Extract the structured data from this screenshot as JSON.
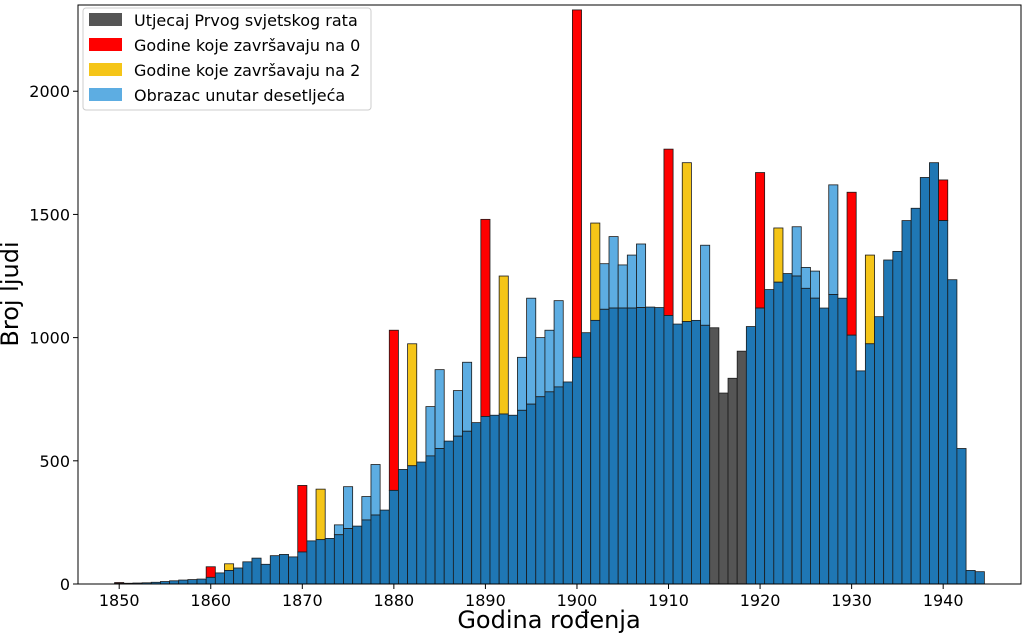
{
  "chart_data": {
    "type": "bar",
    "xlabel": "Godina rođenja",
    "ylabel": "Broj ljudi",
    "xlim": [
      1845.5,
      1948.5
    ],
    "ylim": [
      0,
      2350
    ],
    "x_ticks": [
      1850,
      1860,
      1870,
      1880,
      1890,
      1900,
      1910,
      1920,
      1930,
      1940
    ],
    "y_ticks": [
      0,
      500,
      1000,
      1500,
      2000
    ],
    "legend_position": "top-left",
    "colors": {
      "base": "#1f77b4",
      "ww1": "#555555",
      "zero": "#ff0000",
      "two": "#f5c518",
      "pattern": "#5dade2"
    },
    "legend": [
      {
        "label": "Utjecaj Prvog svjetskog rata",
        "color_key": "ww1"
      },
      {
        "label": "Godine koje završavaju na 0",
        "color_key": "zero"
      },
      {
        "label": "Godine koje završavaju na 2",
        "color_key": "two"
      },
      {
        "label": "Obrazac unutar desetljeća",
        "color_key": "pattern"
      }
    ],
    "years": [
      1850,
      1851,
      1852,
      1853,
      1854,
      1855,
      1856,
      1857,
      1858,
      1859,
      1860,
      1861,
      1862,
      1863,
      1864,
      1865,
      1866,
      1867,
      1868,
      1869,
      1870,
      1871,
      1872,
      1873,
      1874,
      1875,
      1876,
      1877,
      1878,
      1879,
      1880,
      1881,
      1882,
      1883,
      1884,
      1885,
      1886,
      1887,
      1888,
      1889,
      1890,
      1891,
      1892,
      1893,
      1894,
      1895,
      1896,
      1897,
      1898,
      1899,
      1900,
      1901,
      1902,
      1903,
      1904,
      1905,
      1906,
      1907,
      1908,
      1909,
      1910,
      1911,
      1912,
      1913,
      1914,
      1915,
      1916,
      1917,
      1918,
      1919,
      1920,
      1921,
      1922,
      1923,
      1924,
      1925,
      1926,
      1927,
      1928,
      1929,
      1930,
      1931,
      1932,
      1933,
      1934,
      1935,
      1936,
      1937,
      1938,
      1939,
      1940,
      1941,
      1942,
      1943,
      1944
    ],
    "base_values": [
      2,
      3,
      4,
      5,
      7,
      10,
      13,
      16,
      18,
      20,
      27,
      45,
      55,
      65,
      90,
      105,
      80,
      115,
      120,
      110,
      130,
      175,
      180,
      185,
      200,
      225,
      235,
      260,
      280,
      300,
      380,
      465,
      480,
      495,
      520,
      550,
      580,
      600,
      620,
      655,
      680,
      685,
      690,
      685,
      705,
      730,
      760,
      780,
      800,
      820,
      920,
      1020,
      1070,
      1115,
      1120,
      1120,
      1120,
      1122,
      1124,
      1122,
      1090,
      1055,
      1065,
      1070,
      1050,
      1040,
      775,
      835,
      945,
      1045,
      1120,
      1195,
      1225,
      1260,
      1250,
      1200,
      1160,
      1120,
      1175,
      1160,
      1010,
      865,
      975,
      1085,
      1315,
      1350,
      1475,
      1525,
      1650,
      1710,
      1475,
      1235,
      550,
      55,
      50
    ],
    "highlight_values": [
      6,
      0,
      0,
      0,
      0,
      0,
      0,
      0,
      0,
      0,
      70,
      0,
      82,
      0,
      0,
      0,
      0,
      0,
      0,
      0,
      400,
      0,
      385,
      0,
      240,
      395,
      0,
      355,
      485,
      0,
      1030,
      0,
      975,
      0,
      720,
      870,
      0,
      785,
      900,
      0,
      1480,
      0,
      1250,
      0,
      920,
      1160,
      1000,
      1030,
      1150,
      0,
      2330,
      0,
      1465,
      1300,
      1410,
      1295,
      1335,
      1380,
      0,
      0,
      1765,
      0,
      1710,
      0,
      1375,
      0,
      0,
      0,
      0,
      0,
      1670,
      0,
      1445,
      0,
      1450,
      1285,
      1270,
      0,
      1620,
      0,
      1590,
      0,
      1335,
      0,
      0,
      0,
      0,
      0,
      0,
      0,
      1640,
      0,
      0,
      0,
      0
    ],
    "highlight_types": [
      "zero",
      "",
      "",
      "",
      "",
      "",
      "",
      "",
      "",
      "",
      "zero",
      "",
      "two",
      "",
      "",
      "",
      "",
      "",
      "",
      "",
      "zero",
      "",
      "two",
      "",
      "pattern",
      "pattern",
      "",
      "pattern",
      "pattern",
      "",
      "zero",
      "",
      "two",
      "",
      "pattern",
      "pattern",
      "",
      "pattern",
      "pattern",
      "",
      "zero",
      "",
      "two",
      "",
      "pattern",
      "pattern",
      "pattern",
      "pattern",
      "pattern",
      "",
      "zero",
      "",
      "two",
      "pattern",
      "pattern",
      "pattern",
      "pattern",
      "pattern",
      "",
      "",
      "zero",
      "",
      "two",
      "",
      "pattern",
      "",
      "",
      "",
      "",
      "",
      "zero",
      "",
      "two",
      "",
      "pattern",
      "pattern",
      "pattern",
      "",
      "pattern",
      "",
      "zero",
      "",
      "two",
      "",
      "",
      "",
      "",
      "",
      "",
      "",
      "zero",
      "",
      "",
      "",
      ""
    ],
    "ww1_years": [
      1915,
      1916,
      1917,
      1918
    ]
  }
}
